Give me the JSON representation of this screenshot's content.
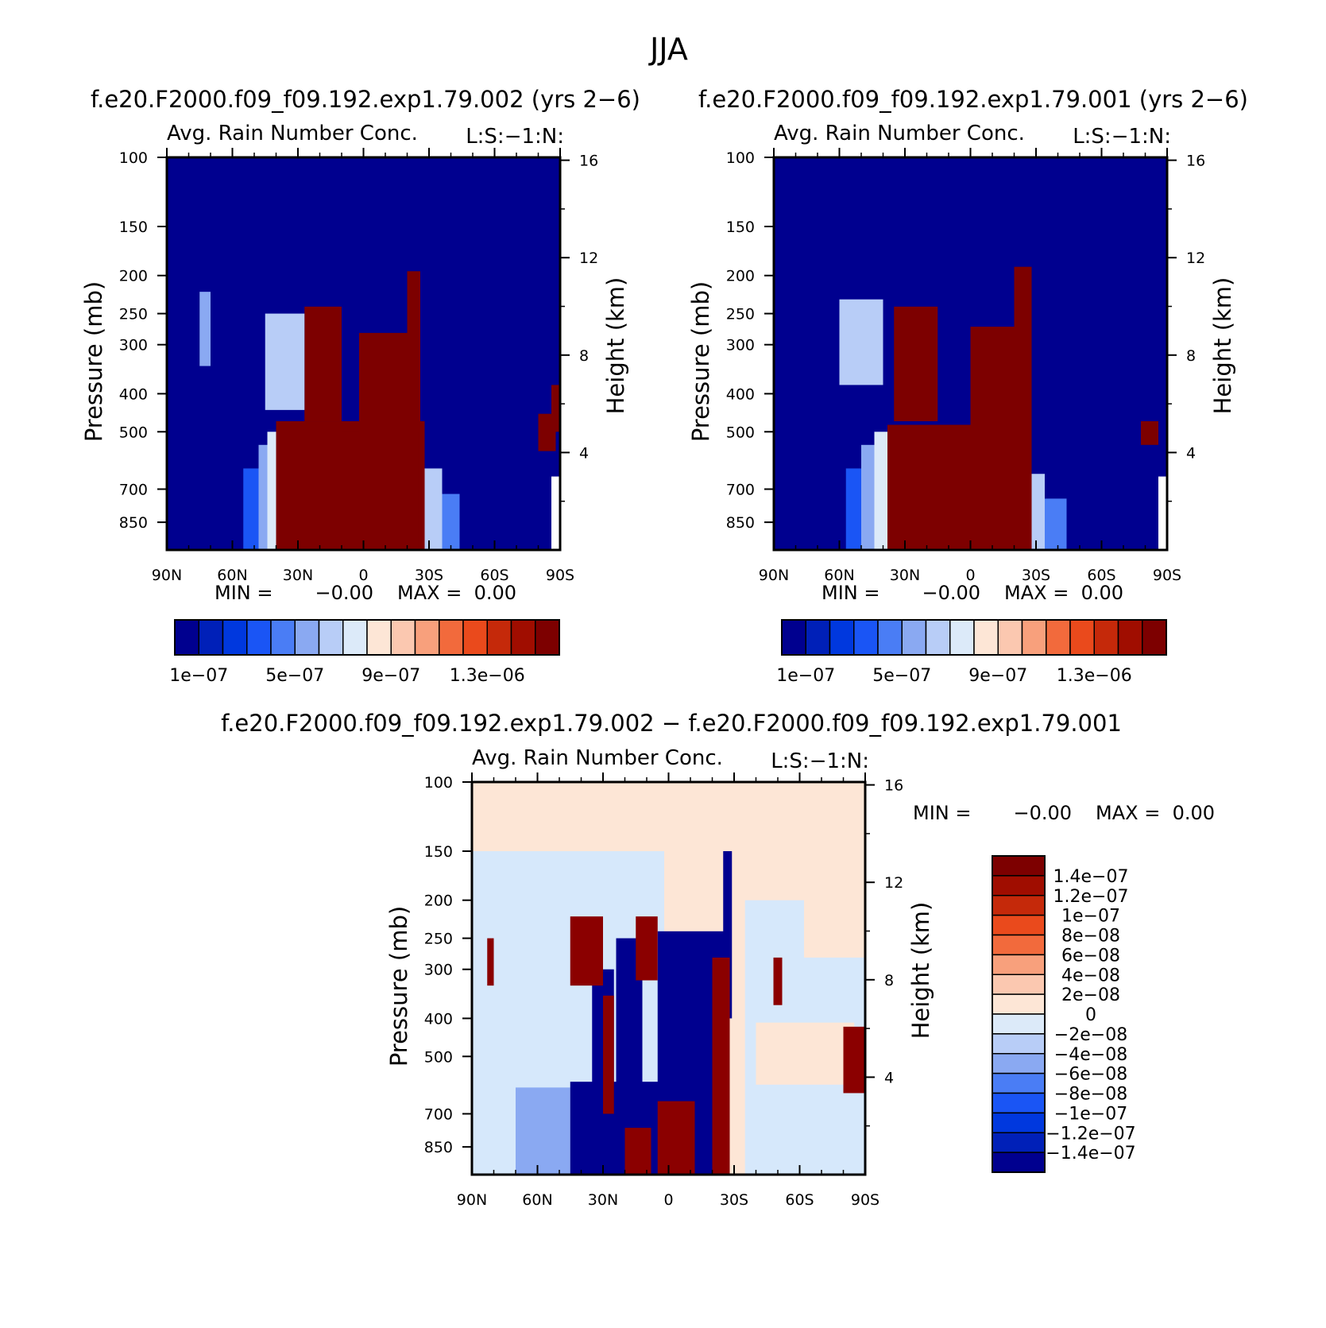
{
  "figure": {
    "title": "JJA",
    "diff_title": "f.e20.F2000.f09_f09.192.exp1.79.002 − f.e20.F2000.f09_f09.192.exp1.79.001"
  },
  "colors": {
    "background": "#ffffff",
    "diff_base": "#fde6d6",
    "diff_negative_light": "#d6e8fb"
  },
  "chart_data": [
    {
      "type": "heatmap",
      "case_title": "f.e20.F2000.f09_f09.192.exp1.79.002 (yrs 2−6)",
      "title": "Avg. Rain Number Conc.",
      "corner_label": "L:S:−1:N:",
      "xlabel": "",
      "ylabel": "Pressure (mb)",
      "y2label": "Height (km)",
      "x_ticks": [
        "90N",
        "60N",
        "30N",
        "0",
        "30S",
        "60S",
        "90S"
      ],
      "xlim": [
        90,
        -90
      ],
      "y_ticks": [
        100,
        150,
        200,
        250,
        300,
        400,
        500,
        700,
        850
      ],
      "ylim": [
        100,
        1000
      ],
      "y_scale": "log",
      "y2_ticks": [
        4,
        8,
        12,
        16
      ],
      "min_label": "MIN =",
      "min_value": "−0.00",
      "max_label": "MAX =",
      "max_value": "0.00",
      "colorbar": {
        "orientation": "horizontal",
        "labels": [
          "1e−07",
          "5e−07",
          "9e−07",
          "1.3e−06"
        ],
        "colors": [
          "#00008f",
          "#0020b8",
          "#0038de",
          "#1a55f5",
          "#4a7df5",
          "#8aa9f2",
          "#b8cdf7",
          "#dceaf9",
          "#fde6d6",
          "#fbc8b0",
          "#f8a07c",
          "#f26a3c",
          "#ea4a1c",
          "#c5290a",
          "#a00d00",
          "#7d0000"
        ]
      }
    },
    {
      "type": "heatmap",
      "case_title": "f.e20.F2000.f09_f09.192.exp1.79.001 (yrs 2−6)",
      "title": "Avg. Rain Number Conc.",
      "corner_label": "L:S:−1:N:",
      "xlabel": "",
      "ylabel": "Pressure (mb)",
      "y2label": "Height (km)",
      "x_ticks": [
        "90N",
        "60N",
        "30N",
        "0",
        "30S",
        "60S",
        "90S"
      ],
      "xlim": [
        90,
        -90
      ],
      "y_ticks": [
        100,
        150,
        200,
        250,
        300,
        400,
        500,
        700,
        850
      ],
      "ylim": [
        100,
        1000
      ],
      "y_scale": "log",
      "y2_ticks": [
        4,
        8,
        12,
        16
      ],
      "min_label": "MIN =",
      "min_value": "−0.00",
      "max_label": "MAX =",
      "max_value": "0.00",
      "colorbar": {
        "orientation": "horizontal",
        "labels": [
          "1e−07",
          "5e−07",
          "9e−07",
          "1.3e−06"
        ],
        "colors": [
          "#00008f",
          "#0020b8",
          "#0038de",
          "#1a55f5",
          "#4a7df5",
          "#8aa9f2",
          "#b8cdf7",
          "#dceaf9",
          "#fde6d6",
          "#fbc8b0",
          "#f8a07c",
          "#f26a3c",
          "#ea4a1c",
          "#c5290a",
          "#a00d00",
          "#7d0000"
        ]
      }
    },
    {
      "type": "heatmap",
      "title": "Avg. Rain Number Conc.",
      "corner_label": "L:S:−1:N:",
      "xlabel": "",
      "ylabel": "Pressure (mb)",
      "y2label": "Height (km)",
      "x_ticks": [
        "90N",
        "60N",
        "30N",
        "0",
        "30S",
        "60S",
        "90S"
      ],
      "xlim": [
        90,
        -90
      ],
      "y_ticks": [
        100,
        150,
        200,
        250,
        300,
        400,
        500,
        700,
        850
      ],
      "ylim": [
        100,
        1000
      ],
      "y_scale": "log",
      "y2_ticks": [
        4,
        8,
        12,
        16
      ],
      "min_label": "MIN =",
      "min_value": "−0.00",
      "max_label": "MAX =",
      "max_value": "0.00",
      "colorbar": {
        "orientation": "vertical",
        "labels": [
          "1.4e−07",
          "1.2e−07",
          "1e−07",
          "8e−08",
          "6e−08",
          "4e−08",
          "2e−08",
          "0",
          "−2e−08",
          "−4e−08",
          "−6e−08",
          "−8e−08",
          "−1e−07",
          "−1.2e−07",
          "−1.4e−07"
        ],
        "colors": [
          "#7d0000",
          "#a00d00",
          "#c5290a",
          "#ea4a1c",
          "#f26a3c",
          "#f8a07c",
          "#fbc8b0",
          "#fde6d6",
          "#dceaf9",
          "#b8cdf7",
          "#8aa9f2",
          "#4a7df5",
          "#1a55f5",
          "#0038de",
          "#0020b8",
          "#00008f"
        ]
      }
    }
  ]
}
